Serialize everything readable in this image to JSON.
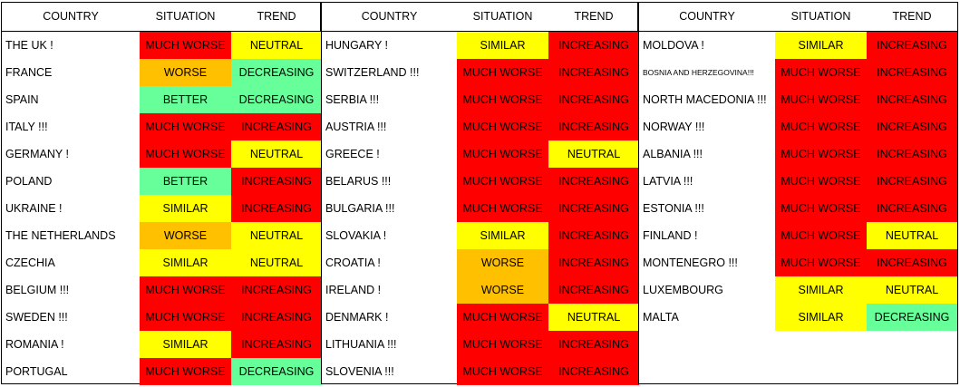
{
  "headers": [
    "COUNTRY",
    "SITUATION",
    "TREND"
  ],
  "colors": {
    "MUCH WORSE": "#ff0000",
    "WORSE": "#ffc000",
    "SIMILAR": "#ffff00",
    "BETTER": "#66ff99",
    "INCREASING": "#ff0000",
    "NEUTRAL": "#ffff00",
    "DECREASING": "#66ff99"
  },
  "tables": [
    {
      "rows": [
        {
          "country": "THE UK !",
          "situation": "MUCH WORSE",
          "trend": "NEUTRAL"
        },
        {
          "country": "FRANCE",
          "situation": "WORSE",
          "trend": "DECREASING"
        },
        {
          "country": "SPAIN",
          "situation": "BETTER",
          "trend": "DECREASING"
        },
        {
          "country": "ITALY !!!",
          "situation": "MUCH WORSE",
          "trend": "INCREASING"
        },
        {
          "country": "GERMANY !",
          "situation": "MUCH WORSE",
          "trend": "NEUTRAL"
        },
        {
          "country": "POLAND",
          "situation": "BETTER",
          "trend": "INCREASING"
        },
        {
          "country": "UKRAINE !",
          "situation": "SIMILAR",
          "trend": "INCREASING"
        },
        {
          "country": "THE NETHERLANDS",
          "situation": "WORSE",
          "trend": "NEUTRAL"
        },
        {
          "country": "CZECHIA",
          "situation": "SIMILAR",
          "trend": "NEUTRAL"
        },
        {
          "country": "BELGIUM !!!",
          "situation": "MUCH WORSE",
          "trend": "INCREASING"
        },
        {
          "country": "SWEDEN !!!",
          "situation": "MUCH WORSE",
          "trend": "INCREASING"
        },
        {
          "country": "ROMANIA !",
          "situation": "SIMILAR",
          "trend": "INCREASING"
        },
        {
          "country": "PORTUGAL",
          "situation": "MUCH WORSE",
          "trend": "DECREASING"
        }
      ]
    },
    {
      "rows": [
        {
          "country": "HUNGARY !",
          "situation": "SIMILAR",
          "trend": "INCREASING"
        },
        {
          "country": "SWITZERLAND !!!",
          "situation": "MUCH WORSE",
          "trend": "INCREASING"
        },
        {
          "country": "SERBIA !!!",
          "situation": "MUCH WORSE",
          "trend": "INCREASING"
        },
        {
          "country": "AUSTRIA !!!",
          "situation": "MUCH WORSE",
          "trend": "INCREASING"
        },
        {
          "country": "GREECE !",
          "situation": "MUCH WORSE",
          "trend": "NEUTRAL"
        },
        {
          "country": "BELARUS !!!",
          "situation": "MUCH WORSE",
          "trend": "INCREASING"
        },
        {
          "country": "BULGARIA !!!",
          "situation": "MUCH WORSE",
          "trend": "INCREASING"
        },
        {
          "country": "SLOVAKIA !",
          "situation": "SIMILAR",
          "trend": "INCREASING"
        },
        {
          "country": "CROATIA !",
          "situation": "WORSE",
          "trend": "INCREASING"
        },
        {
          "country": "IRELAND !",
          "situation": "WORSE",
          "trend": "INCREASING"
        },
        {
          "country": "DENMARK !",
          "situation": "MUCH WORSE",
          "trend": "NEUTRAL"
        },
        {
          "country": "LITHUANIA !!!",
          "situation": "MUCH WORSE",
          "trend": "INCREASING"
        },
        {
          "country": "SLOVENIA !!!",
          "situation": "MUCH WORSE",
          "trend": "INCREASING"
        }
      ]
    },
    {
      "rows": [
        {
          "country": "MOLDOVA !",
          "situation": "SIMILAR",
          "trend": "INCREASING"
        },
        {
          "country": "BOSNIA AND HERZEGOVINA!!!",
          "situation": "MUCH WORSE",
          "trend": "INCREASING",
          "small": true
        },
        {
          "country": "NORTH MACEDONIA !!!",
          "situation": "MUCH WORSE",
          "trend": "INCREASING"
        },
        {
          "country": "NORWAY !!!",
          "situation": "MUCH WORSE",
          "trend": "INCREASING"
        },
        {
          "country": "ALBANIA !!!",
          "situation": "MUCH WORSE",
          "trend": "INCREASING"
        },
        {
          "country": "LATVIA !!!",
          "situation": "MUCH WORSE",
          "trend": "INCREASING"
        },
        {
          "country": "ESTONIA !!!",
          "situation": "MUCH WORSE",
          "trend": "INCREASING"
        },
        {
          "country": "FINLAND !",
          "situation": "MUCH WORSE",
          "trend": "NEUTRAL"
        },
        {
          "country": "MONTENEGRO !!!",
          "situation": "MUCH WORSE",
          "trend": "INCREASING"
        },
        {
          "country": "LUXEMBOURG",
          "situation": "SIMILAR",
          "trend": "NEUTRAL"
        },
        {
          "country": "MALTA",
          "situation": "SIMILAR",
          "trend": "DECREASING"
        }
      ]
    }
  ]
}
